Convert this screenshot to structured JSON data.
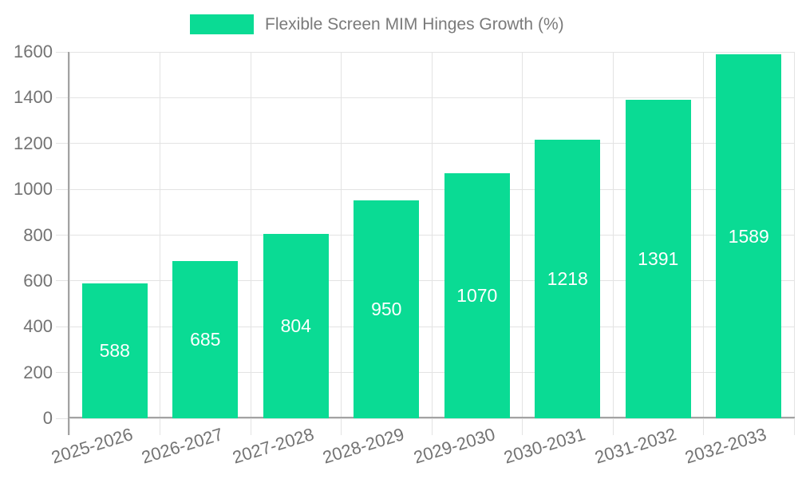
{
  "legend": {
    "label": "Flexible Screen MIM Hinges Growth (%)"
  },
  "chart_data": {
    "type": "bar",
    "title": "Flexible Screen MIM Hinges Growth (%)",
    "series_name": "Flexible Screen MIM Hinges Growth (%)",
    "categories": [
      "2025-2026",
      "2026-2027",
      "2027-2028",
      "2028-2029",
      "2029-2030",
      "2030-2031",
      "2031-2032",
      "2032-2033"
    ],
    "values": [
      588,
      685,
      804,
      950,
      1070,
      1218,
      1391,
      1589
    ],
    "xlabel": "",
    "ylabel": "",
    "ylim": [
      0,
      1600
    ],
    "ytick_step": 200,
    "yticks": [
      0,
      200,
      400,
      600,
      800,
      1000,
      1200,
      1400,
      1600
    ],
    "grid": true,
    "legend_position": "top-center",
    "value_labels": "inside-center",
    "x_label_rotation_deg": -17,
    "colors": {
      "bar": "#0adb94",
      "grid": "#e3e3e3",
      "axis": "#a3a3a3",
      "tick_text": "#737373",
      "value_label": "#ffffff",
      "legend_text": "#7a7a7a"
    }
  }
}
